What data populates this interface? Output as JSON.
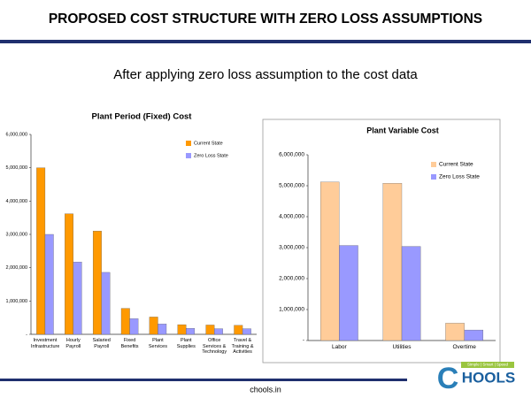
{
  "header": {
    "title": "PROPOSED COST STRUCTURE WITH ZERO LOSS ASSUMPTIONS"
  },
  "subtitle": "After applying zero loss assumption to the cost data",
  "chart_data": [
    {
      "type": "bar",
      "title": "Plant Period (Fixed) Cost",
      "categories": [
        "Investment Infrastructure",
        "Hourly Payroll",
        "Salaried Payroll",
        "Fixed Benefits",
        "Plant Services",
        "Plant Supplies",
        "Office Services & Technology",
        "Travel & Training & Activities"
      ],
      "series": [
        {
          "name": "Current State",
          "color": "#ff9900",
          "values": [
            5000000,
            3620000,
            3100000,
            780000,
            520000,
            290000,
            280000,
            270000
          ]
        },
        {
          "name": "Zero Loss State",
          "color": "#9999ff",
          "values": [
            3000000,
            2170000,
            1860000,
            470000,
            310000,
            180000,
            170000,
            170000
          ]
        }
      ],
      "ylim": [
        0,
        6000000
      ],
      "yticks": [
        {
          "value": 0,
          "label": "-"
        },
        {
          "value": 1000000,
          "label": "1,000,000"
        },
        {
          "value": 2000000,
          "label": "2,000,000"
        },
        {
          "value": 3000000,
          "label": "3,000,000"
        },
        {
          "value": 4000000,
          "label": "4,000,000"
        },
        {
          "value": 5000000,
          "label": "5,000,000"
        },
        {
          "value": 6000000,
          "label": "6,000,000"
        }
      ],
      "grid": false,
      "legend": "upper right"
    },
    {
      "type": "bar",
      "title": "Plant Variable Cost",
      "categories": [
        "Labor",
        "Utilities",
        "Overtime"
      ],
      "series": [
        {
          "name": "Current State",
          "color": "#ffcc99",
          "values": [
            5120000,
            5080000,
            560000
          ]
        },
        {
          "name": "Zero Loss State",
          "color": "#9999ff",
          "values": [
            3070000,
            3040000,
            340000
          ]
        }
      ],
      "ylim": [
        0,
        6000000
      ],
      "yticks": [
        {
          "value": 0,
          "label": "-"
        },
        {
          "value": 1000000,
          "label": "1,000,000"
        },
        {
          "value": 2000000,
          "label": "2,000,000"
        },
        {
          "value": 3000000,
          "label": "3,000,000"
        },
        {
          "value": 4000000,
          "label": "4,000,000"
        },
        {
          "value": 5000000,
          "label": "5,000,000"
        },
        {
          "value": 6000000,
          "label": "6,000,000"
        }
      ],
      "grid": false,
      "legend": "upper right"
    }
  ],
  "footer": {
    "site": "chools.in"
  },
  "logo": {
    "letter": "C",
    "text": "HOOLS",
    "tagline": "Simple | Smart | Speed"
  }
}
